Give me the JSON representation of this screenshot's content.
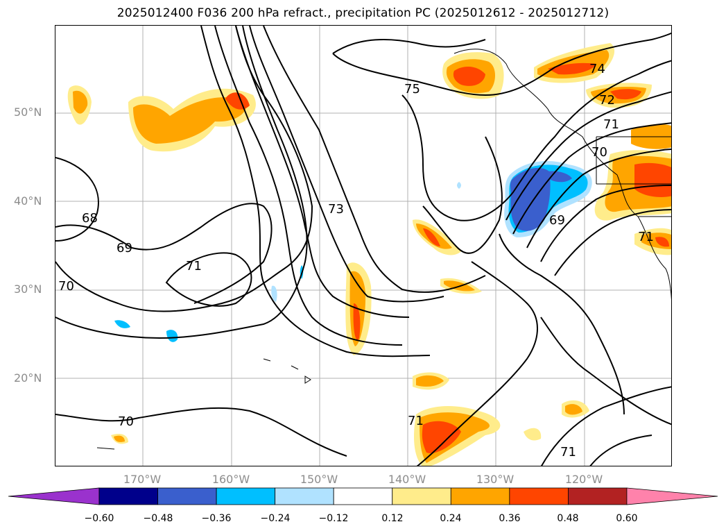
{
  "title": "2025012400 F036 200 hPa refract., precipitation PC (2025012612 - 2025012712)",
  "map": {
    "lat_labels": [
      "50°N",
      "40°N",
      "30°N",
      "20°N"
    ],
    "lon_labels": [
      "170°W",
      "160°W",
      "150°W",
      "140°W",
      "130°W",
      "120°W"
    ],
    "contour_labels": [
      "75",
      "74",
      "72",
      "71",
      "70",
      "73",
      "68",
      "69",
      "71",
      "70",
      "69",
      "71",
      "70",
      "71",
      "71"
    ]
  },
  "colorbar": {
    "ticks": [
      "−0.60",
      "−0.48",
      "−0.36",
      "−0.24",
      "−0.12",
      "0.12",
      "0.24",
      "0.36",
      "0.48",
      "0.60"
    ],
    "colors": [
      "#9a32cd",
      "#00008b",
      "#3a5fcd",
      "#00bfff",
      "#b0e2ff",
      "#ffffff",
      "#ffec8b",
      "#ffa500",
      "#ff4500",
      "#b22222",
      "#ff82ab"
    ]
  }
}
